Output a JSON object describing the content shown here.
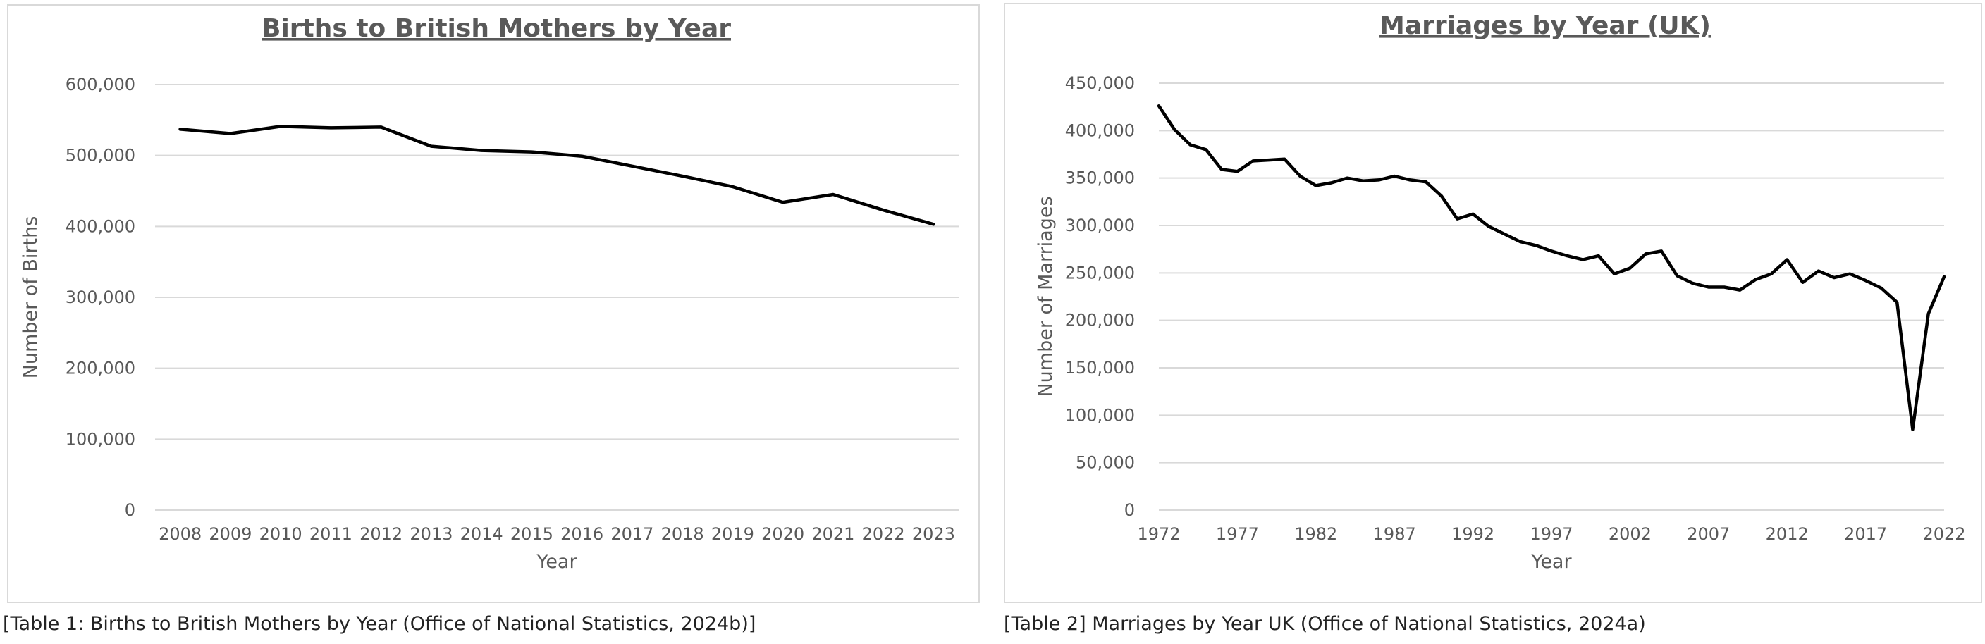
{
  "chart_data": [
    {
      "type": "line",
      "title": "Births to British Mothers by Year",
      "xlabel": "Year",
      "ylabel": "Number of Births",
      "x": [
        2008,
        2009,
        2010,
        2011,
        2012,
        2013,
        2014,
        2015,
        2016,
        2017,
        2018,
        2019,
        2020,
        2021,
        2022,
        2023
      ],
      "x_tick_labels": [
        "2008",
        "2009",
        "2010",
        "2011",
        "2012",
        "2013",
        "2014",
        "2015",
        "2016",
        "2017",
        "2018",
        "2019",
        "2020",
        "2021",
        "2022",
        "2023"
      ],
      "y_tick_labels": [
        "0",
        "100,000",
        "200,000",
        "300,000",
        "400,000",
        "500,000",
        "600,000"
      ],
      "y_ticks": [
        0,
        100000,
        200000,
        300000,
        400000,
        500000,
        600000
      ],
      "ylim": [
        0,
        600000
      ],
      "series": [
        {
          "values": [
            537000,
            531000,
            541000,
            539000,
            540000,
            513000,
            507000,
            505000,
            499000,
            485000,
            471000,
            456000,
            434000,
            445000,
            423000,
            403000
          ]
        }
      ],
      "grid": true,
      "line_color": "#000000"
    },
    {
      "type": "line",
      "title": "Marriages by Year (UK)",
      "xlabel": "Year",
      "ylabel": "Number of Marriages",
      "x": [
        1972,
        1973,
        1974,
        1975,
        1976,
        1977,
        1978,
        1979,
        1980,
        1981,
        1982,
        1983,
        1984,
        1985,
        1986,
        1987,
        1988,
        1989,
        1990,
        1991,
        1992,
        1993,
        1994,
        1995,
        1996,
        1997,
        1998,
        1999,
        2000,
        2001,
        2002,
        2003,
        2004,
        2005,
        2006,
        2007,
        2008,
        2009,
        2010,
        2011,
        2012,
        2013,
        2014,
        2015,
        2016,
        2017,
        2018,
        2019,
        2020,
        2021,
        2022
      ],
      "x_tick_labels": [
        "1972",
        "1977",
        "1982",
        "1987",
        "1992",
        "1997",
        "2002",
        "2007",
        "2012",
        "2017",
        "2022"
      ],
      "x_ticks": [
        1972,
        1977,
        1982,
        1987,
        1992,
        1997,
        2002,
        2007,
        2012,
        2017,
        2022
      ],
      "y_tick_labels": [
        "0",
        "50,000",
        "100,000",
        "150,000",
        "200,000",
        "250,000",
        "300,000",
        "350,000",
        "400,000",
        "450,000"
      ],
      "y_ticks": [
        0,
        50000,
        100000,
        150000,
        200000,
        250000,
        300000,
        350000,
        400000,
        450000
      ],
      "ylim": [
        0,
        450000
      ],
      "series": [
        {
          "values": [
            426000,
            401000,
            385000,
            380000,
            359000,
            357000,
            368000,
            369000,
            370000,
            352000,
            342000,
            345000,
            350000,
            347000,
            348000,
            352000,
            348000,
            346000,
            331000,
            307000,
            312000,
            299000,
            291000,
            283000,
            279000,
            273000,
            268000,
            264000,
            268000,
            249000,
            255000,
            270000,
            273000,
            247000,
            239000,
            235000,
            235000,
            232000,
            243000,
            249000,
            264000,
            240000,
            252000,
            245000,
            249000,
            242000,
            234000,
            219000,
            85000,
            207000,
            246000
          ]
        }
      ],
      "grid": true,
      "line_color": "#000000"
    }
  ],
  "captions": {
    "table1": "[Table 1: Births to British Mothers by Year (Office of National Statistics, 2024b)]",
    "table2": "[Table 2] Marriages by Year UK (Office of National Statistics, 2024a)"
  }
}
